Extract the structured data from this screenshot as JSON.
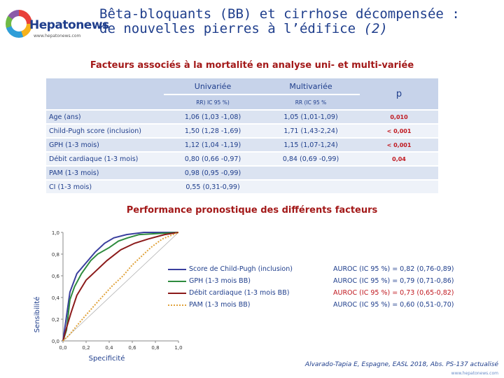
{
  "logo": {
    "name": "Hepatonews",
    "url": "www.hepatonews.com"
  },
  "title": {
    "line1": "Bêta-bloquants (BB) et cirrhose décompensée :",
    "line2": "de nouvelles pierres à l’édifice",
    "suffix": "(2)"
  },
  "subtitle": "Facteurs associés à la mortalité en analyse uni- et multi-variée",
  "table": {
    "header": {
      "uni": "Univariée",
      "multi": "Multivariée",
      "p": "p",
      "uni_sub": "RR) IC 95 %)",
      "multi_sub": "RR (IC 95 %"
    },
    "rows": [
      {
        "label": "Age (ans)",
        "uni": "1,06 (1,03 -1,08)",
        "multi": "1,05 (1,01-1,09)",
        "p": "0,010"
      },
      {
        "label": "Child-Pugh score (inclusion)",
        "uni": "1,50 (1,28 -1,69)",
        "multi": "1,71 (1,43-2,24)",
        "p": "< 0,001"
      },
      {
        "label": "GPH (1-3 mois)",
        "uni": "1,12 (1,04 -1,19)",
        "multi": "1,15 (1,07-1,24)",
        "p": "< 0,001"
      },
      {
        "label": "Débit cardiaque (1-3 mois)",
        "uni": "0,80 (0,66 -0,97)",
        "multi": "0,84 (0,69 -0,99)",
        "p": "0,04"
      },
      {
        "label": "PAM (1-3 mois)",
        "uni": "0,98 (0,95 -0,99)",
        "multi": "",
        "p": ""
      },
      {
        "label": "CI (1-3 mois)",
        "uni": "0,55 (0,31-0,99)",
        "multi": "",
        "p": ""
      }
    ]
  },
  "perf_title": "Performance pronostique des différents facteurs",
  "chart_data": {
    "type": "line",
    "xlabel": "Specificité",
    "ylabel": "Sensibilité",
    "xlim": [
      0,
      1
    ],
    "ylim": [
      0,
      1
    ],
    "x_ticks": [
      "0,0",
      "0,2",
      "0,4",
      "0,6",
      "0,8",
      "1,0"
    ],
    "y_ticks": [
      "0,0",
      "0,2",
      "0,4",
      "0,6",
      "0,8",
      "1,0"
    ],
    "series": [
      {
        "name": "Score de Child-Pugh (inclusion)",
        "color": "#3a3f9e",
        "style": "solid",
        "points": [
          [
            0,
            0
          ],
          [
            0.02,
            0.15
          ],
          [
            0.06,
            0.45
          ],
          [
            0.12,
            0.62
          ],
          [
            0.2,
            0.72
          ],
          [
            0.28,
            0.82
          ],
          [
            0.36,
            0.9
          ],
          [
            0.44,
            0.95
          ],
          [
            0.55,
            0.98
          ],
          [
            0.7,
            1.0
          ],
          [
            1,
            1
          ]
        ]
      },
      {
        "name": "GPH (1-3 mois BB)",
        "color": "#2e8b3e",
        "style": "solid",
        "points": [
          [
            0,
            0
          ],
          [
            0.03,
            0.1
          ],
          [
            0.06,
            0.38
          ],
          [
            0.1,
            0.5
          ],
          [
            0.16,
            0.62
          ],
          [
            0.24,
            0.74
          ],
          [
            0.3,
            0.8
          ],
          [
            0.4,
            0.86
          ],
          [
            0.48,
            0.92
          ],
          [
            0.56,
            0.95
          ],
          [
            0.66,
            0.98
          ],
          [
            1,
            1
          ]
        ]
      },
      {
        "name": "Débit cardiaque (1-3 mois BB)",
        "color": "#8b1a1a",
        "style": "solid",
        "points": [
          [
            0,
            0
          ],
          [
            0.03,
            0.12
          ],
          [
            0.07,
            0.26
          ],
          [
            0.12,
            0.42
          ],
          [
            0.2,
            0.56
          ],
          [
            0.28,
            0.64
          ],
          [
            0.38,
            0.74
          ],
          [
            0.5,
            0.84
          ],
          [
            0.62,
            0.9
          ],
          [
            0.74,
            0.94
          ],
          [
            0.88,
            0.98
          ],
          [
            1,
            1
          ]
        ]
      },
      {
        "name": "PAM (1-3 mois BB)",
        "color": "#e0a23a",
        "style": "dotted",
        "points": [
          [
            0,
            0
          ],
          [
            0.05,
            0.05
          ],
          [
            0.12,
            0.14
          ],
          [
            0.2,
            0.24
          ],
          [
            0.3,
            0.36
          ],
          [
            0.42,
            0.5
          ],
          [
            0.52,
            0.6
          ],
          [
            0.6,
            0.7
          ],
          [
            0.68,
            0.78
          ],
          [
            0.76,
            0.86
          ],
          [
            0.86,
            0.94
          ],
          [
            1,
            1
          ]
        ]
      }
    ]
  },
  "auroc": [
    {
      "text": "AUROC (IC 95 %) = 0,82 (0,76-0,89)",
      "color": "#1f3e8c"
    },
    {
      "text": "AUROC (IC 95 %) = 0,79 (0,71-0,86)",
      "color": "#1f3e8c"
    },
    {
      "text": "AUROC (IC 95 %) = 0,73 (0,65-0,82)",
      "color": "#c0181f"
    },
    {
      "text": "AUROC (IC 95 %) = 0,60 (0,51-0,70)",
      "color": "#1f3e8c"
    }
  ],
  "citation": "Alvarado-Tapia E, Espagne, EASL 2018, Abs. PS-137 actualisé",
  "footer_url": "www.hepatonews.com"
}
